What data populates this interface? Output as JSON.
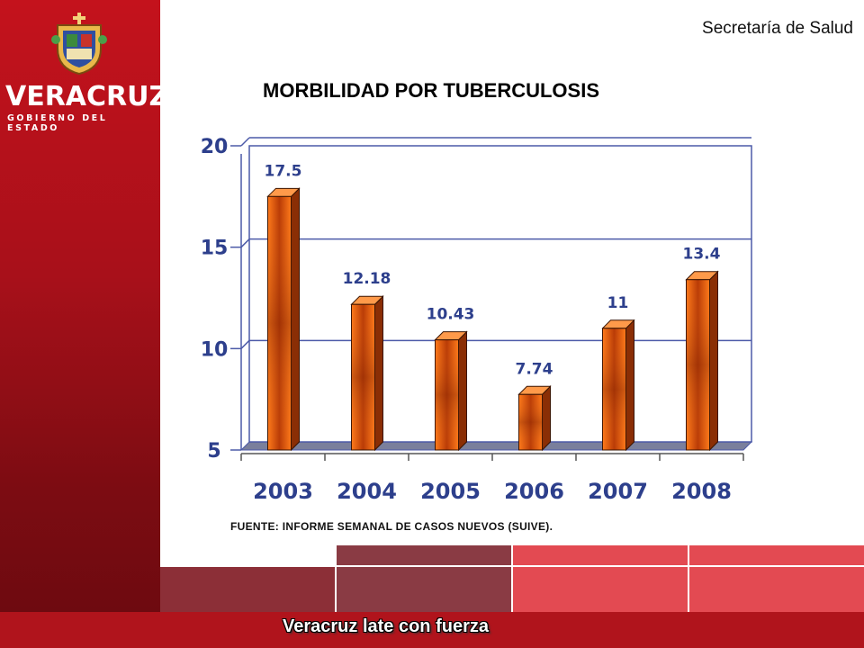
{
  "header": {
    "brand": "VERACRUZ",
    "brand_subtitle": "GOBIERNO DEL ESTADO",
    "department": "Secretaría de Salud"
  },
  "slide": {
    "title": "MORBILIDAD POR TUBERCULOSIS",
    "source_note": "FUENTE: INFORME SEMANAL DE CASOS NUEVOS (SUIVE)."
  },
  "footer": {
    "tagline": "Veracruz late con fuerza"
  },
  "colors": {
    "sidebar_red": "#b0141c",
    "bar_orange": "#f26a10",
    "axis_label_blue": "#2d3f8c",
    "gridline": "#4c5aa8"
  },
  "chart_data": {
    "type": "bar",
    "categories": [
      "2003",
      "2004",
      "2005",
      "2006",
      "2007",
      "2008"
    ],
    "values": [
      17.5,
      12.18,
      10.43,
      7.74,
      11,
      13.4
    ],
    "value_labels": [
      "17.5",
      "12.18",
      "10.43",
      "7.74",
      "11",
      "13.4"
    ],
    "y_ticks": [
      5,
      10,
      15,
      20
    ],
    "ylim": [
      5,
      20
    ],
    "grid": true,
    "legend": "none"
  }
}
